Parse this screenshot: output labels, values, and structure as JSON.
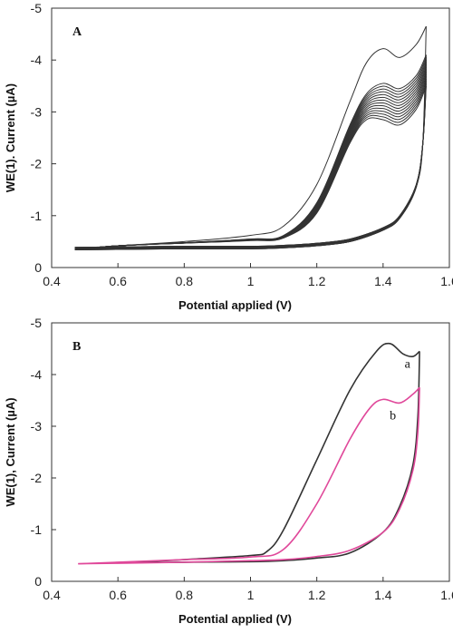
{
  "chart_data": [
    {
      "type": "line",
      "panel_label": "A",
      "xlabel": "Potential applied (V)",
      "ylabel": "WE(1). Current (µA)",
      "xlim": [
        0.4,
        1.6
      ],
      "ylim": [
        0,
        -5
      ],
      "xticks": [
        0.4,
        0.6,
        0.8,
        1.0,
        1.2,
        1.4,
        1.6
      ],
      "xtick_labels": [
        "0.4",
        "0.6",
        "0.8",
        "1",
        "1.2",
        "1.4",
        "1.6"
      ],
      "yticks": [
        0,
        -1,
        -2,
        -3,
        -4,
        -5
      ],
      "ytick_labels": [
        "0",
        "-1",
        "-2",
        "-3",
        "-4",
        "-5"
      ],
      "grid": false,
      "colors": [
        "#333333"
      ],
      "scan_count": 15,
      "x": [
        0.47,
        0.6,
        0.8,
        1.0,
        1.1,
        1.2,
        1.3,
        1.35,
        1.4,
        1.45,
        1.5,
        1.53
      ],
      "series": [
        {
          "values": [
            -0.35,
            -0.42,
            -0.5,
            -0.62,
            -0.8,
            -1.6,
            -3.2,
            -3.95,
            -4.22,
            -4.05,
            -4.3,
            -4.65
          ]
        },
        {
          "values": [
            -0.35,
            -0.42,
            -0.48,
            -0.55,
            -0.62,
            -1.25,
            -2.75,
            -3.35,
            -3.55,
            -3.45,
            -3.7,
            -4.1
          ]
        },
        {
          "values": [
            -0.35,
            -0.42,
            -0.47,
            -0.52,
            -0.57,
            -1.05,
            -2.4,
            -2.85,
            -2.85,
            -2.75,
            -3.05,
            -3.5
          ]
        }
      ]
    },
    {
      "type": "line",
      "panel_label": "B",
      "xlabel": "Potential applied (V)",
      "ylabel": "WE(1), Current (µA)",
      "xlim": [
        0.4,
        1.6
      ],
      "ylim": [
        0,
        -5
      ],
      "xticks": [
        0.4,
        0.6,
        0.8,
        1.0,
        1.2,
        1.4,
        1.6
      ],
      "xtick_labels": [
        "0.4",
        "0.6",
        "0.8",
        "1",
        "1.2",
        "1.4",
        "1.6"
      ],
      "yticks": [
        0,
        -1,
        -2,
        -3,
        -4,
        -5
      ],
      "ytick_labels": [
        "0",
        "-1",
        "-2",
        "-3",
        "-4",
        "-5"
      ],
      "grid": false,
      "series": [
        {
          "name": "a",
          "color": "#333333",
          "x": [
            0.63,
            0.8,
            1.0,
            1.05,
            1.1,
            1.2,
            1.3,
            1.38,
            1.42,
            1.46,
            1.49,
            1.51
          ],
          "values": [
            -0.36,
            -0.42,
            -0.5,
            -0.58,
            -1.0,
            -2.35,
            -3.7,
            -4.45,
            -4.6,
            -4.4,
            -4.35,
            -4.45
          ]
        },
        {
          "name": "b",
          "color": "#e0489a",
          "x": [
            0.48,
            0.6,
            0.8,
            1.0,
            1.1,
            1.2,
            1.3,
            1.36,
            1.4,
            1.45,
            1.49,
            1.51
          ],
          "values": [
            -0.34,
            -0.37,
            -0.42,
            -0.47,
            -0.62,
            -1.5,
            -2.75,
            -3.35,
            -3.52,
            -3.45,
            -3.62,
            -3.75
          ]
        }
      ]
    }
  ]
}
